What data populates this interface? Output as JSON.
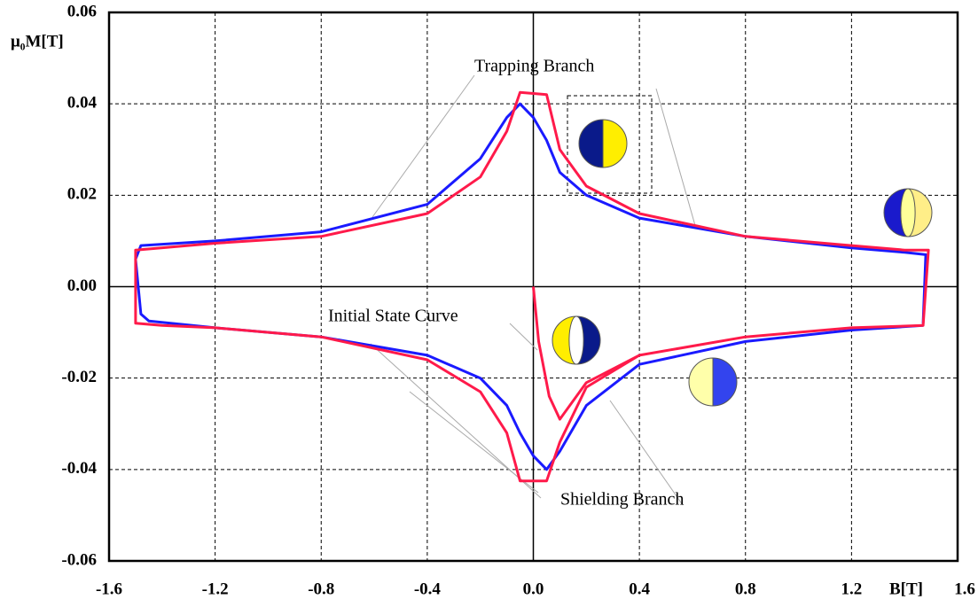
{
  "chart_data": {
    "type": "line",
    "x_label": "B[T]",
    "y_label": "μ₀M[T]",
    "annotations": [
      "Trapping Branch",
      "Initial State Curve",
      "Shielding Branch"
    ],
    "xlim": [
      -1.6,
      1.6
    ],
    "ylim": [
      -0.06,
      0.06
    ],
    "xticks": [
      -1.6,
      -1.2,
      -0.8,
      -0.4,
      {
        "value": 0,
        "label": "0.0"
      },
      0.4,
      0.8,
      1.2,
      1.6
    ],
    "yticks": [
      0.06,
      0.04,
      0.02,
      {
        "value": 0,
        "label": "0.00"
      },
      -0.02,
      -0.04,
      -0.06
    ],
    "grid": true,
    "series": [
      {
        "color": "#1a1aff",
        "x": [
          1.47,
          1.48,
          1.4,
          1.2,
          0.8,
          0.4,
          0.2,
          0.1,
          0.05,
          0.0,
          -0.05,
          -0.1,
          -0.2,
          -0.4,
          -0.8,
          -1.2,
          -1.48,
          -1.5,
          -1.48,
          -1.45,
          -1.2,
          -0.8,
          -0.4,
          -0.2,
          -0.1,
          -0.05,
          0.0,
          0.05,
          0.1,
          0.2,
          0.4,
          0.8,
          1.2,
          1.47
        ],
        "values": [
          -0.008,
          0.007,
          0.0075,
          0.0085,
          0.011,
          0.015,
          0.02,
          0.025,
          0.032,
          0.037,
          0.04,
          0.037,
          0.028,
          0.018,
          0.012,
          0.01,
          0.009,
          0.006,
          -0.006,
          -0.0075,
          -0.009,
          -0.011,
          -0.015,
          -0.02,
          -0.026,
          -0.032,
          -0.037,
          -0.04,
          -0.036,
          -0.026,
          -0.017,
          -0.012,
          -0.0095,
          -0.0085
        ]
      },
      {
        "color": "#ff1a4a",
        "x": [
          0.0,
          0.02,
          0.06,
          0.1,
          0.2,
          0.4,
          0.8,
          1.2,
          1.47,
          1.49,
          1.4,
          1.2,
          0.8,
          0.4,
          0.2,
          0.1,
          0.05,
          -0.05,
          -0.1,
          -0.2,
          -0.4,
          -0.8,
          -1.2,
          -1.5,
          -1.5,
          -1.4,
          -1.2,
          -0.8,
          -0.4,
          -0.2,
          -0.1,
          -0.05,
          0.05,
          0.1,
          0.2,
          0.4,
          0.8,
          1.2,
          1.47
        ],
        "values": [
          0.0,
          -0.012,
          -0.024,
          -0.029,
          -0.021,
          -0.015,
          -0.011,
          -0.009,
          -0.0085,
          0.008,
          0.008,
          0.009,
          0.011,
          0.016,
          0.022,
          0.03,
          0.042,
          0.0425,
          0.034,
          0.024,
          0.016,
          0.011,
          0.0095,
          0.008,
          -0.008,
          -0.0085,
          -0.009,
          -0.011,
          -0.016,
          -0.023,
          -0.032,
          -0.0425,
          -0.0425,
          -0.034,
          -0.022,
          -0.015,
          -0.011,
          -0.009,
          -0.0085
        ]
      }
    ]
  }
}
